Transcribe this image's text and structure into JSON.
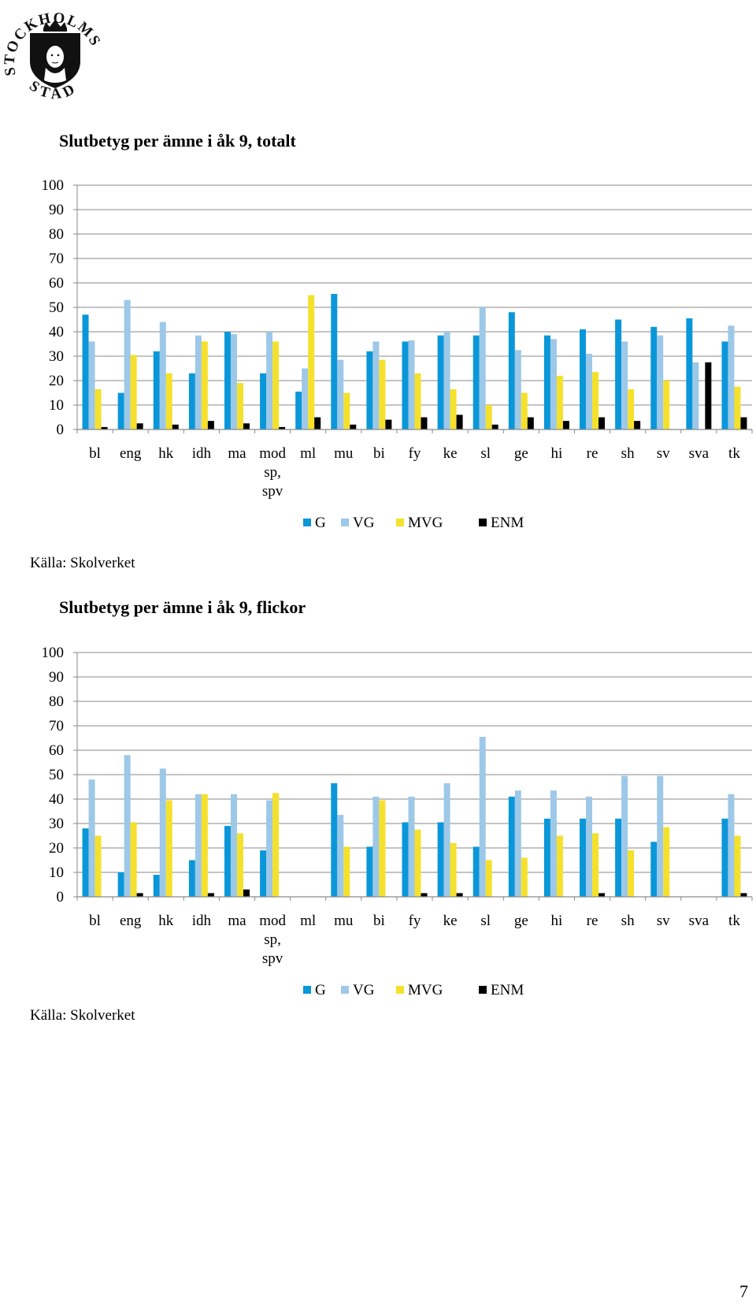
{
  "header": {
    "logo_text": "STOCKHOLMS STAD"
  },
  "page_number": "7",
  "charts": [
    {
      "title": "Slutbetyg per ämne i åk 9, totalt",
      "source": "Källa: Skolverket"
    },
    {
      "title": "Slutbetyg per ämne i åk 9, flickor",
      "source": "Källa: Skolverket"
    }
  ],
  "chart_data": [
    {
      "type": "bar",
      "title": "Slutbetyg per ämne i åk 9, totalt",
      "xlabel": "",
      "ylabel": "",
      "ylim": [
        0,
        100
      ],
      "yticks": [
        0,
        10,
        20,
        30,
        40,
        50,
        60,
        70,
        80,
        90,
        100
      ],
      "grid": true,
      "legend_position": "bottom",
      "categories": [
        "bl",
        "eng",
        "hk",
        "idh",
        "ma",
        "mod sp, spv",
        "ml",
        "mu",
        "bi",
        "fy",
        "ke",
        "sl",
        "ge",
        "hi",
        "re",
        "sh",
        "sv",
        "sva",
        "tk"
      ],
      "series": [
        {
          "name": "G",
          "color": "#0a97d9",
          "values": [
            47,
            15,
            32,
            23,
            40,
            23,
            15.5,
            55.5,
            32,
            36,
            38.5,
            38.5,
            48,
            38.5,
            41,
            45,
            42,
            45.5,
            36
          ]
        },
        {
          "name": "VG",
          "color": "#9dc8e8",
          "values": [
            36,
            53,
            44,
            38.5,
            39,
            40,
            25,
            28.5,
            36,
            36.5,
            40,
            50,
            32.5,
            37,
            31,
            36,
            38.5,
            27.5,
            42.5
          ]
        },
        {
          "name": "MVG",
          "color": "#f5e12c",
          "values": [
            16.5,
            30.5,
            23,
            36,
            19,
            36,
            55,
            15,
            28.5,
            23,
            16.5,
            10,
            15,
            22,
            23.5,
            16.5,
            20,
            0,
            17.5
          ]
        },
        {
          "name": "ENM",
          "color": "#000000",
          "values": [
            1,
            2.5,
            2,
            3.5,
            2.5,
            1,
            5,
            2,
            4,
            5,
            6,
            2,
            5,
            3.5,
            5,
            3.5,
            0,
            27.5,
            5
          ]
        }
      ]
    },
    {
      "type": "bar",
      "title": "Slutbetyg per ämne i åk 9, flickor",
      "xlabel": "",
      "ylabel": "",
      "ylim": [
        0,
        100
      ],
      "yticks": [
        0,
        10,
        20,
        30,
        40,
        50,
        60,
        70,
        80,
        90,
        100
      ],
      "grid": true,
      "legend_position": "bottom",
      "categories": [
        "bl",
        "eng",
        "hk",
        "idh",
        "ma",
        "mod sp, spv",
        "ml",
        "mu",
        "bi",
        "fy",
        "ke",
        "sl",
        "ge",
        "hi",
        "re",
        "sh",
        "sv",
        "sva",
        "tk"
      ],
      "series": [
        {
          "name": "G",
          "color": "#0a97d9",
          "values": [
            28,
            10,
            9,
            15,
            29,
            19,
            0,
            46.5,
            20.5,
            30.5,
            30.5,
            20.5,
            41,
            32,
            32,
            32,
            22.5,
            0,
            32
          ]
        },
        {
          "name": "VG",
          "color": "#9dc8e8",
          "values": [
            48,
            58,
            52.5,
            42,
            42,
            39.5,
            0,
            33.5,
            41,
            41,
            46.5,
            65.5,
            43.5,
            43.5,
            41,
            49.5,
            49.5,
            0,
            42
          ]
        },
        {
          "name": "MVG",
          "color": "#f5e12c",
          "values": [
            25,
            30.5,
            39.5,
            42,
            26,
            42.5,
            0,
            20.5,
            39.5,
            27.5,
            22,
            15,
            16,
            25,
            26,
            19,
            28.5,
            0,
            25
          ]
        },
        {
          "name": "ENM",
          "color": "#000000",
          "values": [
            0,
            1.5,
            0,
            1.5,
            3,
            0,
            0,
            0,
            0,
            1.5,
            1.5,
            0,
            0,
            0,
            1.5,
            0,
            0,
            0,
            1.5
          ]
        }
      ]
    }
  ]
}
